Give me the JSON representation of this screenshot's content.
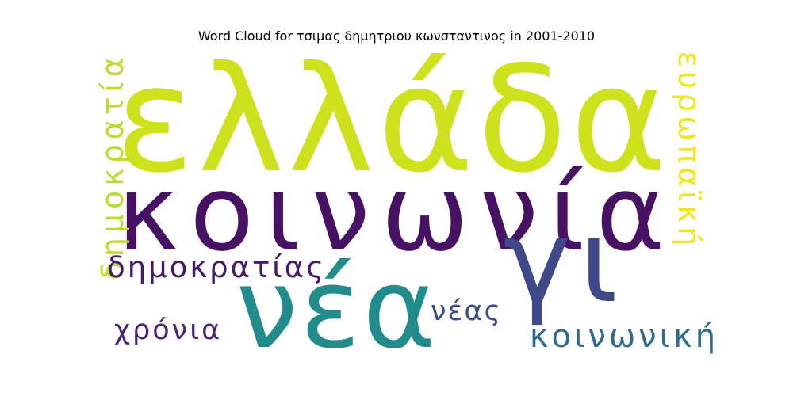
{
  "title": "Word Cloud for τσιμας δημητριου κωνσταντινος in 2001-2010",
  "chart_data": {
    "type": "wordcloud",
    "title": "Word Cloud for τσιμας δημητριου κωνσταντινος in 2001-2010",
    "words": [
      {
        "text": "ελλάδα",
        "color": "#cde11d"
      },
      {
        "text": "κοινωνία",
        "color": "#471164"
      },
      {
        "text": "νέα",
        "color": "#228c8d"
      },
      {
        "text": "γι",
        "color": "#3f4889"
      },
      {
        "text": "δημοκρατία",
        "color": "#b8de29"
      },
      {
        "text": "ευρωπαϊκή",
        "color": "#f1e51d"
      },
      {
        "text": "δημοκρατίας",
        "color": "#48196b"
      },
      {
        "text": "χρόνια",
        "color": "#4b2478"
      },
      {
        "text": "νέας",
        "color": "#3d4e8a"
      },
      {
        "text": "κοινωνική",
        "color": "#2f6b8e"
      }
    ]
  }
}
